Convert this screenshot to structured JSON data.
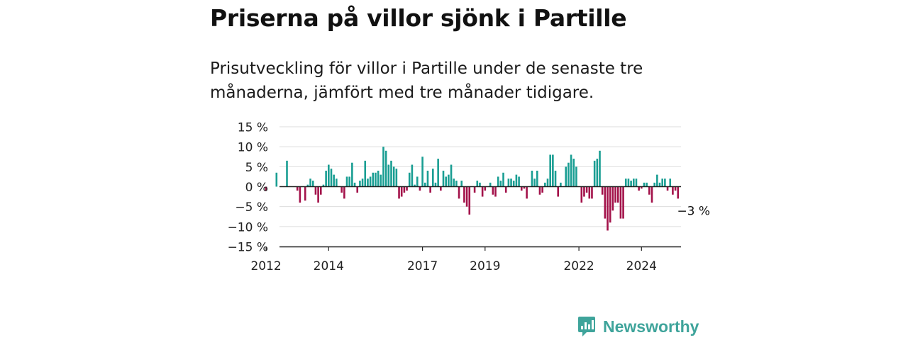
{
  "title": "Priserna på villor sjönk i Partille",
  "subtitle": "Prisutveckling för villor i Partille under de senaste tre månaderna, jämfört med tre månader tidigare.",
  "brand": "Newsworthy",
  "colors": {
    "positive": "#1a9e93",
    "negative": "#a3124a",
    "grid": "#dddddd",
    "axis": "#222222",
    "brand": "#3fa49b"
  },
  "chart_data": {
    "type": "bar",
    "unit": "%",
    "ylim": [
      -15,
      15
    ],
    "yticks": [
      {
        "value": 15,
        "label": "15 %"
      },
      {
        "value": 10,
        "label": "10 %"
      },
      {
        "value": 5,
        "label": "5 %"
      },
      {
        "value": 0,
        "label": "0 %"
      },
      {
        "value": -5,
        "label": "−5 %"
      },
      {
        "value": -10,
        "label": "−10 %"
      },
      {
        "value": -15,
        "label": "−15 %"
      }
    ],
    "xticks": [
      {
        "year": 2012,
        "label": "2012"
      },
      {
        "year": 2014,
        "label": "2014"
      },
      {
        "year": 2017,
        "label": "2017"
      },
      {
        "year": 2019,
        "label": "2019"
      },
      {
        "year": 2022,
        "label": "2022"
      },
      {
        "year": 2024,
        "label": "2024"
      }
    ],
    "x_start": "2011-01",
    "values": [
      null,
      null,
      null,
      null,
      null,
      null,
      null,
      null,
      null,
      null,
      null,
      null,
      -1,
      null,
      null,
      null,
      3.5,
      null,
      null,
      null,
      6.5,
      null,
      null,
      null,
      -1,
      -4,
      null,
      -3.5,
      0.5,
      2,
      1.5,
      -2,
      -4,
      -2,
      0.5,
      4,
      5.5,
      4.5,
      3,
      2,
      null,
      -1.5,
      -3,
      2.5,
      2.5,
      6,
      1,
      -1.5,
      1.5,
      2,
      6.5,
      2,
      2.5,
      3.5,
      3.5,
      4,
      3,
      10,
      9,
      5.5,
      6.5,
      5,
      4.5,
      -3,
      -2.5,
      -1.5,
      -1,
      3.5,
      5.5,
      0.5,
      2.5,
      -1,
      7.5,
      1,
      4,
      -1.5,
      4.5,
      1,
      7,
      -1,
      4,
      2.5,
      3,
      5.5,
      2,
      1.5,
      -3,
      1.5,
      -4,
      -5,
      -7,
      null,
      -1.5,
      1.5,
      1,
      -2.5,
      -1,
      null,
      1,
      -2,
      -2.5,
      2.5,
      1.5,
      3.5,
      -1.5,
      2,
      2,
      1.5,
      3,
      2.5,
      -1,
      -0.5,
      -3,
      null,
      4,
      2,
      4,
      -2,
      -1.5,
      1,
      2,
      8,
      8,
      4,
      -2.5,
      1,
      null,
      5,
      6,
      8,
      7,
      5,
      null,
      -4,
      -2.5,
      -1.5,
      -3,
      -3,
      6.5,
      7,
      9,
      -2,
      -8,
      -11,
      -9,
      -6,
      -4,
      -4,
      -8,
      -8,
      2,
      2,
      1.5,
      2,
      2,
      -1,
      -0.5,
      1,
      1,
      -2,
      -4,
      1,
      3,
      1,
      2,
      2,
      -1,
      2,
      -2,
      -1,
      -3
    ],
    "annotation": {
      "label": "−3 %"
    }
  }
}
